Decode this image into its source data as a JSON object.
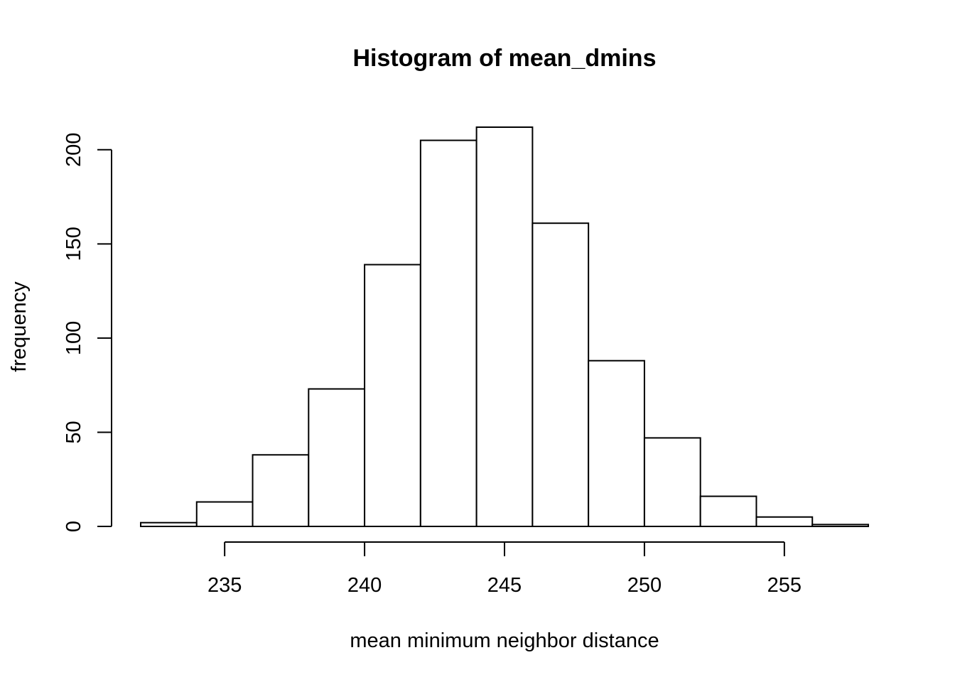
{
  "chart_data": {
    "type": "bar",
    "title": "Histogram of mean_dmins",
    "xlabel": "mean minimum neighbor distance",
    "ylabel": "frequency",
    "bin_edges": [
      232,
      234,
      236,
      238,
      240,
      242,
      244,
      246,
      248,
      250,
      252,
      254,
      256,
      258
    ],
    "counts": [
      2,
      13,
      38,
      73,
      139,
      205,
      212,
      161,
      88,
      47,
      16,
      5,
      1
    ],
    "xlim": [
      232,
      258
    ],
    "ylim": [
      0,
      212
    ],
    "x_ticks": [
      235,
      240,
      245,
      250,
      255
    ],
    "y_ticks": [
      0,
      50,
      100,
      150,
      200
    ],
    "grid": false
  }
}
